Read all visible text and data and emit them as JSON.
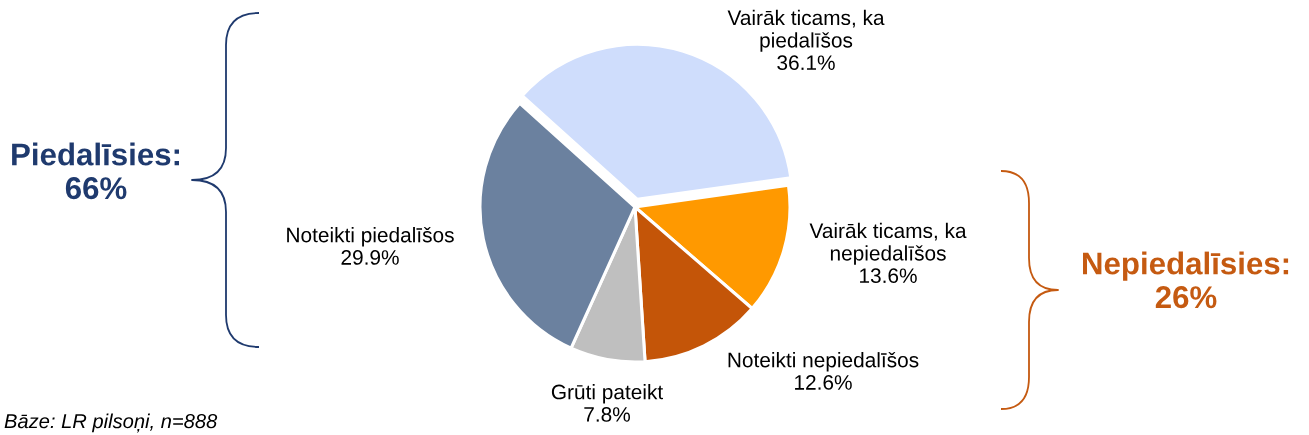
{
  "chart_data": {
    "type": "pie",
    "categories": [
      "Vairāk ticams, ka\npiedalīšos",
      "Vairāk ticams, ka\nnepiedalīšos",
      "Noteikti nepiedalīšos",
      "Grūti pateikt",
      "Noteikti piedalīšos"
    ],
    "values": [
      36.1,
      13.6,
      12.6,
      7.8,
      29.9
    ],
    "colors": [
      "#cfddfc",
      "#ff9900",
      "#c45508",
      "#bfbfbf",
      "#6b819f"
    ],
    "value_labels": [
      "36.1%",
      "13.6%",
      "12.6%",
      "7.8%",
      "29.9%"
    ],
    "annotations": [
      "Piedalīsies:\n66%",
      "Nepiedalīsies:\n26%",
      "Bāze: LR pilsoņi, n=888"
    ]
  }
}
